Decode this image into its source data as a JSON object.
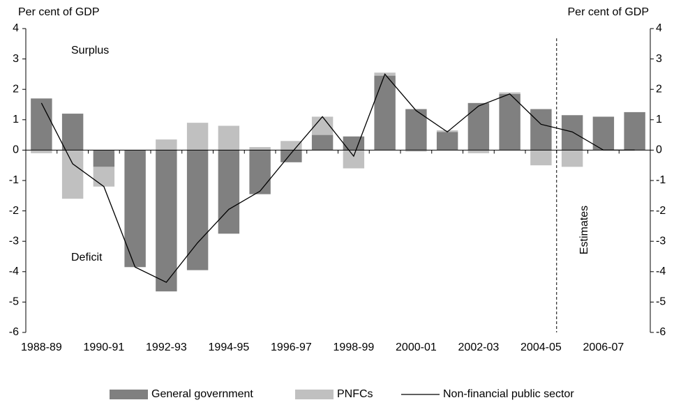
{
  "chart_data": {
    "type": "bar",
    "y_label": "Per cent of GDP",
    "y2_label": "Per cent of GDP",
    "annotations": [
      "Surplus",
      "Deficit",
      "Estimates"
    ],
    "categories": [
      "1988-89",
      null,
      "1990-91",
      null,
      "1992-93",
      null,
      "1994-95",
      null,
      "1996-97",
      null,
      "1998-99",
      null,
      "2000-01",
      null,
      "2002-03",
      null,
      "2004-05",
      null,
      "2006-07",
      null
    ],
    "series": [
      {
        "name": "General government",
        "type": "bar",
        "color": "#808080",
        "values": [
          1.7,
          1.2,
          -0.55,
          -3.85,
          -4.65,
          -3.95,
          -2.75,
          -1.45,
          -0.4,
          0.5,
          0.45,
          2.45,
          1.35,
          0.6,
          1.55,
          1.85,
          1.35,
          1.15,
          1.1,
          1.25
        ]
      },
      {
        "name": "PNFCs",
        "type": "bar",
        "color": "#c0c0c0",
        "values": [
          -0.1,
          -1.6,
          -0.65,
          0,
          0.35,
          0.9,
          0.8,
          0.1,
          0.3,
          0.6,
          -0.6,
          0.1,
          -0.05,
          0.05,
          -0.1,
          0.05,
          -0.5,
          -0.55,
          null,
          null
        ]
      },
      {
        "name": "Non-financial public sector",
        "type": "line",
        "color": "#000000",
        "values": [
          1.55,
          -0.45,
          -1.2,
          -3.85,
          -4.35,
          -3.05,
          -1.95,
          -1.35,
          -0.1,
          1.1,
          -0.2,
          2.5,
          1.3,
          0.6,
          1.45,
          1.85,
          0.85,
          0.6,
          0.0,
          0.0
        ]
      }
    ],
    "ylim": [
      -6,
      4
    ],
    "yticks": [
      -6,
      -5,
      -4,
      -3,
      -2,
      -1,
      0,
      1,
      2,
      3,
      4
    ],
    "y2lim": [
      -6,
      4
    ],
    "y2ticks": [
      -6,
      -5,
      -4,
      -3,
      -2,
      -1,
      0,
      1,
      2,
      3,
      4
    ],
    "grid": false
  }
}
